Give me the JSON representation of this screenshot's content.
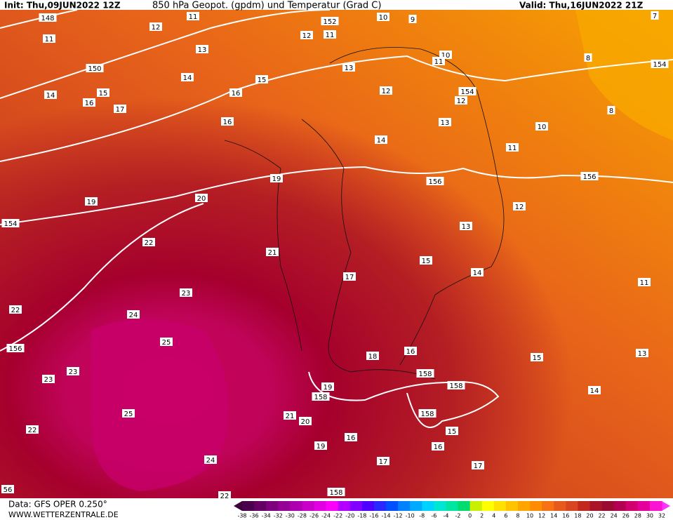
{
  "header": {
    "init": "Init: Thu,09JUN2022 12Z",
    "title": "850 hPa Geopot. (gpdm) und Temperatur (Grad C)",
    "valid": "Valid: Thu,16JUN2022 21Z"
  },
  "footer": {
    "data_source": "Data: GFS OPER 0.250°",
    "website": "WWW.WETTERZENTRALE.DE"
  },
  "colorbar": {
    "labels": [
      -38,
      -36,
      -34,
      -32,
      -30,
      -28,
      -26,
      -24,
      -22,
      -20,
      -18,
      -16,
      -14,
      -12,
      -10,
      -8,
      -6,
      -4,
      -2,
      0,
      2,
      4,
      6,
      8,
      10,
      12,
      14,
      16,
      18,
      20,
      22,
      24,
      26,
      28,
      30,
      32
    ],
    "colors": [
      "#4b004b",
      "#640064",
      "#7d007d",
      "#960096",
      "#af00af",
      "#c800c8",
      "#e100e1",
      "#fa00fa",
      "#b400ff",
      "#8200ff",
      "#5000ff",
      "#2828ff",
      "#0050ff",
      "#0082ff",
      "#00aaff",
      "#00d2ff",
      "#00e6d2",
      "#00e6a0",
      "#00dc6e",
      "#c8f000",
      "#ffff00",
      "#ffe100",
      "#ffc300",
      "#ffa500",
      "#ff8c00",
      "#f57314",
      "#e65a1e",
      "#d7461e",
      "#c3281e",
      "#aa1428",
      "#9b0a32",
      "#b40050",
      "#d2006e",
      "#e6009b",
      "#fa14d2"
    ]
  },
  "contour_labels": [
    "148",
    "152",
    "11",
    "10",
    "9",
    "7",
    "12",
    "12",
    "11",
    "11",
    "13",
    "10",
    "11",
    "8",
    "154",
    "150",
    "14",
    "15",
    "13",
    "12",
    "154",
    "14",
    "15",
    "16",
    "16",
    "17",
    "12",
    "8",
    "13",
    "16",
    "10",
    "14",
    "11",
    "19",
    "156",
    "156",
    "20",
    "19",
    "12",
    "154",
    "13",
    "22",
    "21",
    "15",
    "14",
    "17",
    "11",
    "23",
    "22",
    "24",
    "25",
    "16",
    "156",
    "18",
    "15",
    "13",
    "23",
    "158",
    "23",
    "158",
    "19",
    "14",
    "158",
    "25",
    "21",
    "158",
    "20",
    "15",
    "22",
    "16",
    "16",
    "19",
    "24",
    "17",
    "17",
    "158",
    "56",
    "22"
  ]
}
